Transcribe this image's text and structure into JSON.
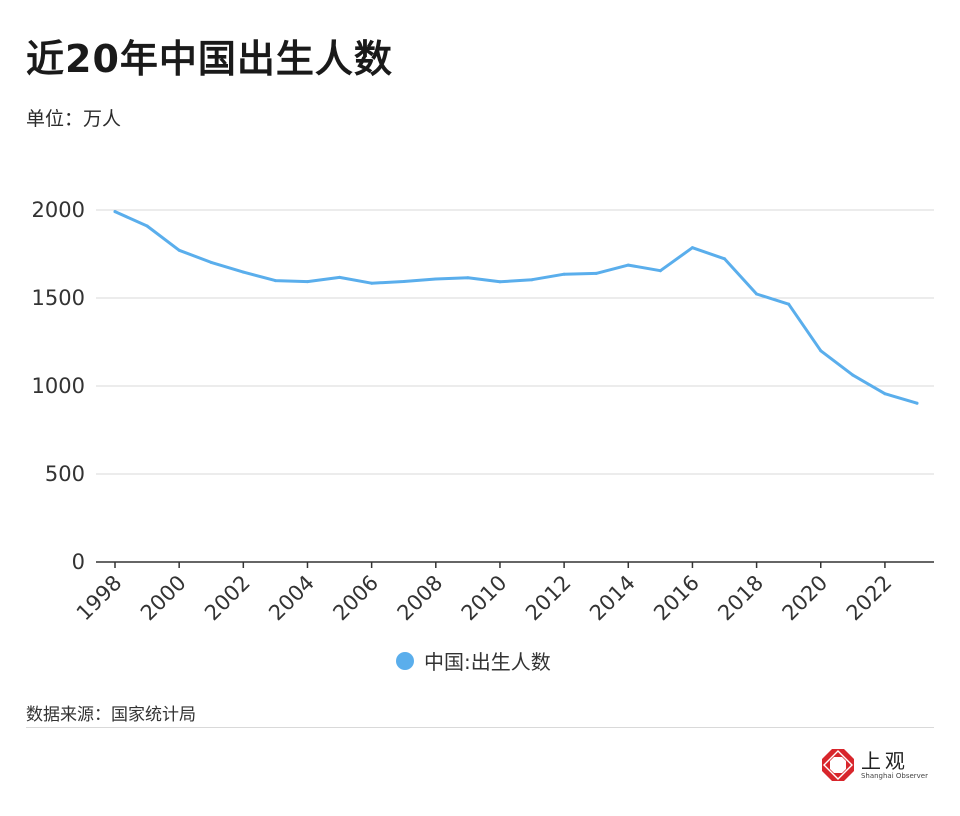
{
  "header": {
    "title": "近20年中国出生人数",
    "unit": "单位：万人"
  },
  "footer": {
    "source": "数据来源：国家统计局",
    "brand_cn": "上观",
    "brand_en": "Shanghai Observer"
  },
  "colors": {
    "series": "#5aaeec",
    "grid": "#d9d9d9",
    "axis": "#333333",
    "brand_red": "#d8262c"
  },
  "chart_data": {
    "type": "line",
    "x": [
      1998,
      1999,
      2000,
      2001,
      2002,
      2003,
      2004,
      2005,
      2006,
      2007,
      2008,
      2009,
      2010,
      2011,
      2012,
      2013,
      2014,
      2015,
      2016,
      2017,
      2018,
      2019,
      2020,
      2021,
      2022,
      2023
    ],
    "series": [
      {
        "name": "中国:出生人数",
        "values": [
          1991,
          1909,
          1771,
          1702,
          1647,
          1599,
          1593,
          1617,
          1584,
          1594,
          1608,
          1615,
          1592,
          1604,
          1635,
          1640,
          1687,
          1655,
          1786,
          1723,
          1523,
          1465,
          1200,
          1062,
          956,
          902
        ]
      }
    ],
    "x_ticks": [
      "1998",
      "2000",
      "2002",
      "2004",
      "2006",
      "2008",
      "2010",
      "2012",
      "2014",
      "2016",
      "2018",
      "2020",
      "2022"
    ],
    "y_ticks": [
      "0",
      "500",
      "1000",
      "1500",
      "2000"
    ],
    "ylim": [
      0,
      2000
    ],
    "xlim": [
      1998,
      2023
    ],
    "grid": true,
    "legend": "bottom-center"
  }
}
